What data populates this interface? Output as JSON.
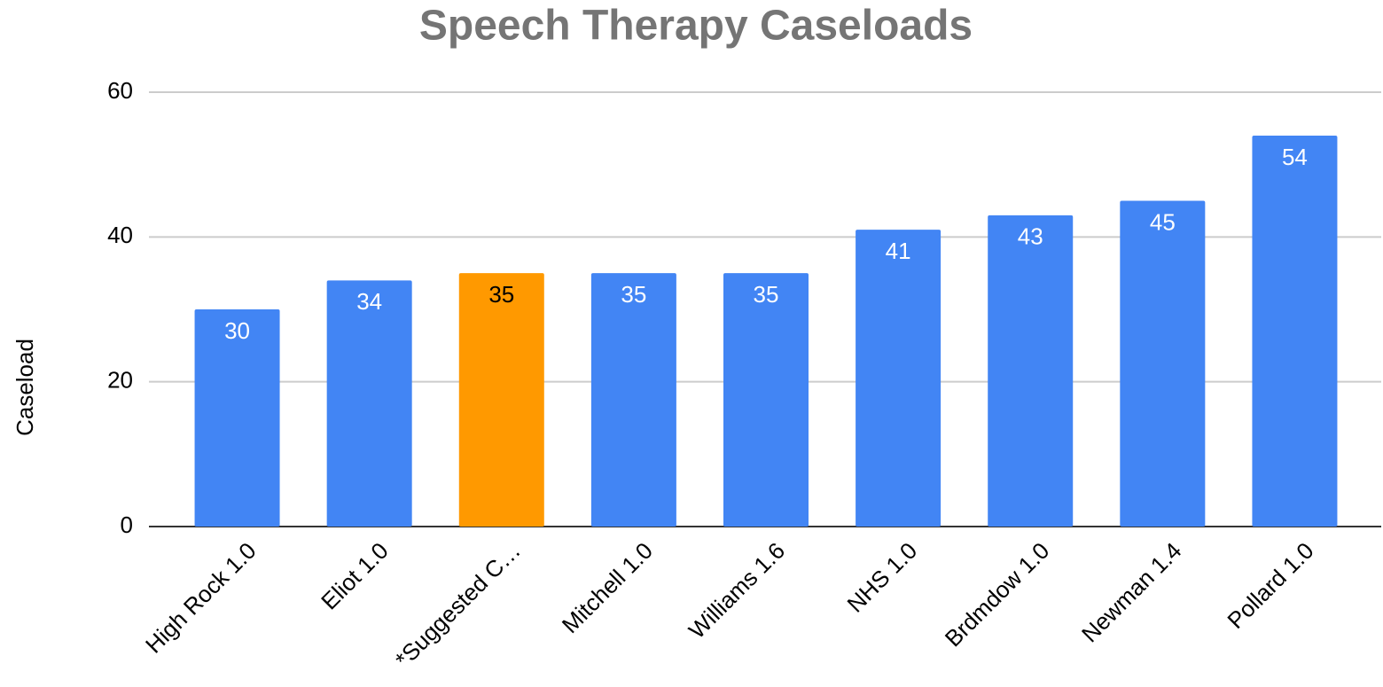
{
  "chart_data": {
    "type": "bar",
    "title": "Speech Therapy Caseloads",
    "y_label": "Caseload",
    "categories": [
      "High Rock 1.0",
      "Eliot 1.0",
      "*Suggested C…",
      "Mitchell 1.0",
      "Williams 1.6",
      "NHS 1.0",
      "Brdmdow 1.0",
      "Newman 1.4",
      "Pollard 1.0"
    ],
    "values": [
      30,
      34,
      35,
      35,
      35,
      41,
      43,
      45,
      54
    ],
    "colors": [
      "#4285f4",
      "#4285f4",
      "#ff9900",
      "#4285f4",
      "#4285f4",
      "#4285f4",
      "#4285f4",
      "#4285f4",
      "#4285f4"
    ],
    "ylim": [
      0,
      60
    ],
    "yticks": [
      0,
      20,
      40,
      60
    ],
    "grid": true
  }
}
